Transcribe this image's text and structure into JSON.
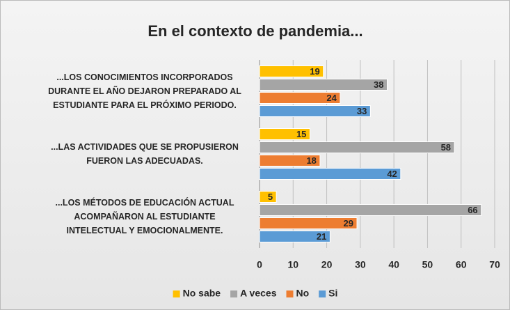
{
  "chart_data": {
    "type": "hbar",
    "title": "En el contexto de pandemia...",
    "categories": [
      "...LOS CONOCIMIENTOS INCORPORADOS DURANTE EL AÑO DEJARON PREPARADO AL ESTUDIANTE PARA EL PRÓXIMO PERIODO.",
      "...LAS ACTIVIDADES QUE SE PROPUSIERON FUERON LAS ADECUADAS.",
      "...LOS MÉTODOS DE EDUCACIÓN ACTUAL ACOMPAÑARON AL ESTUDIANTE INTELECTUAL Y EMOCIONALMENTE."
    ],
    "series": [
      {
        "name": "No sabe",
        "color": "#FFC000",
        "values": [
          19,
          15,
          5
        ]
      },
      {
        "name": "A veces",
        "color": "#A5A5A5",
        "values": [
          38,
          58,
          66
        ]
      },
      {
        "name": "No",
        "color": "#ED7D31",
        "values": [
          24,
          18,
          29
        ]
      },
      {
        "name": "Si",
        "color": "#5B9BD5",
        "values": [
          33,
          42,
          21
        ]
      }
    ],
    "xlim": [
      0,
      70
    ],
    "xticks": [
      0,
      10,
      20,
      30,
      40,
      50,
      60,
      70
    ],
    "grid": true,
    "legend": "bottom"
  }
}
